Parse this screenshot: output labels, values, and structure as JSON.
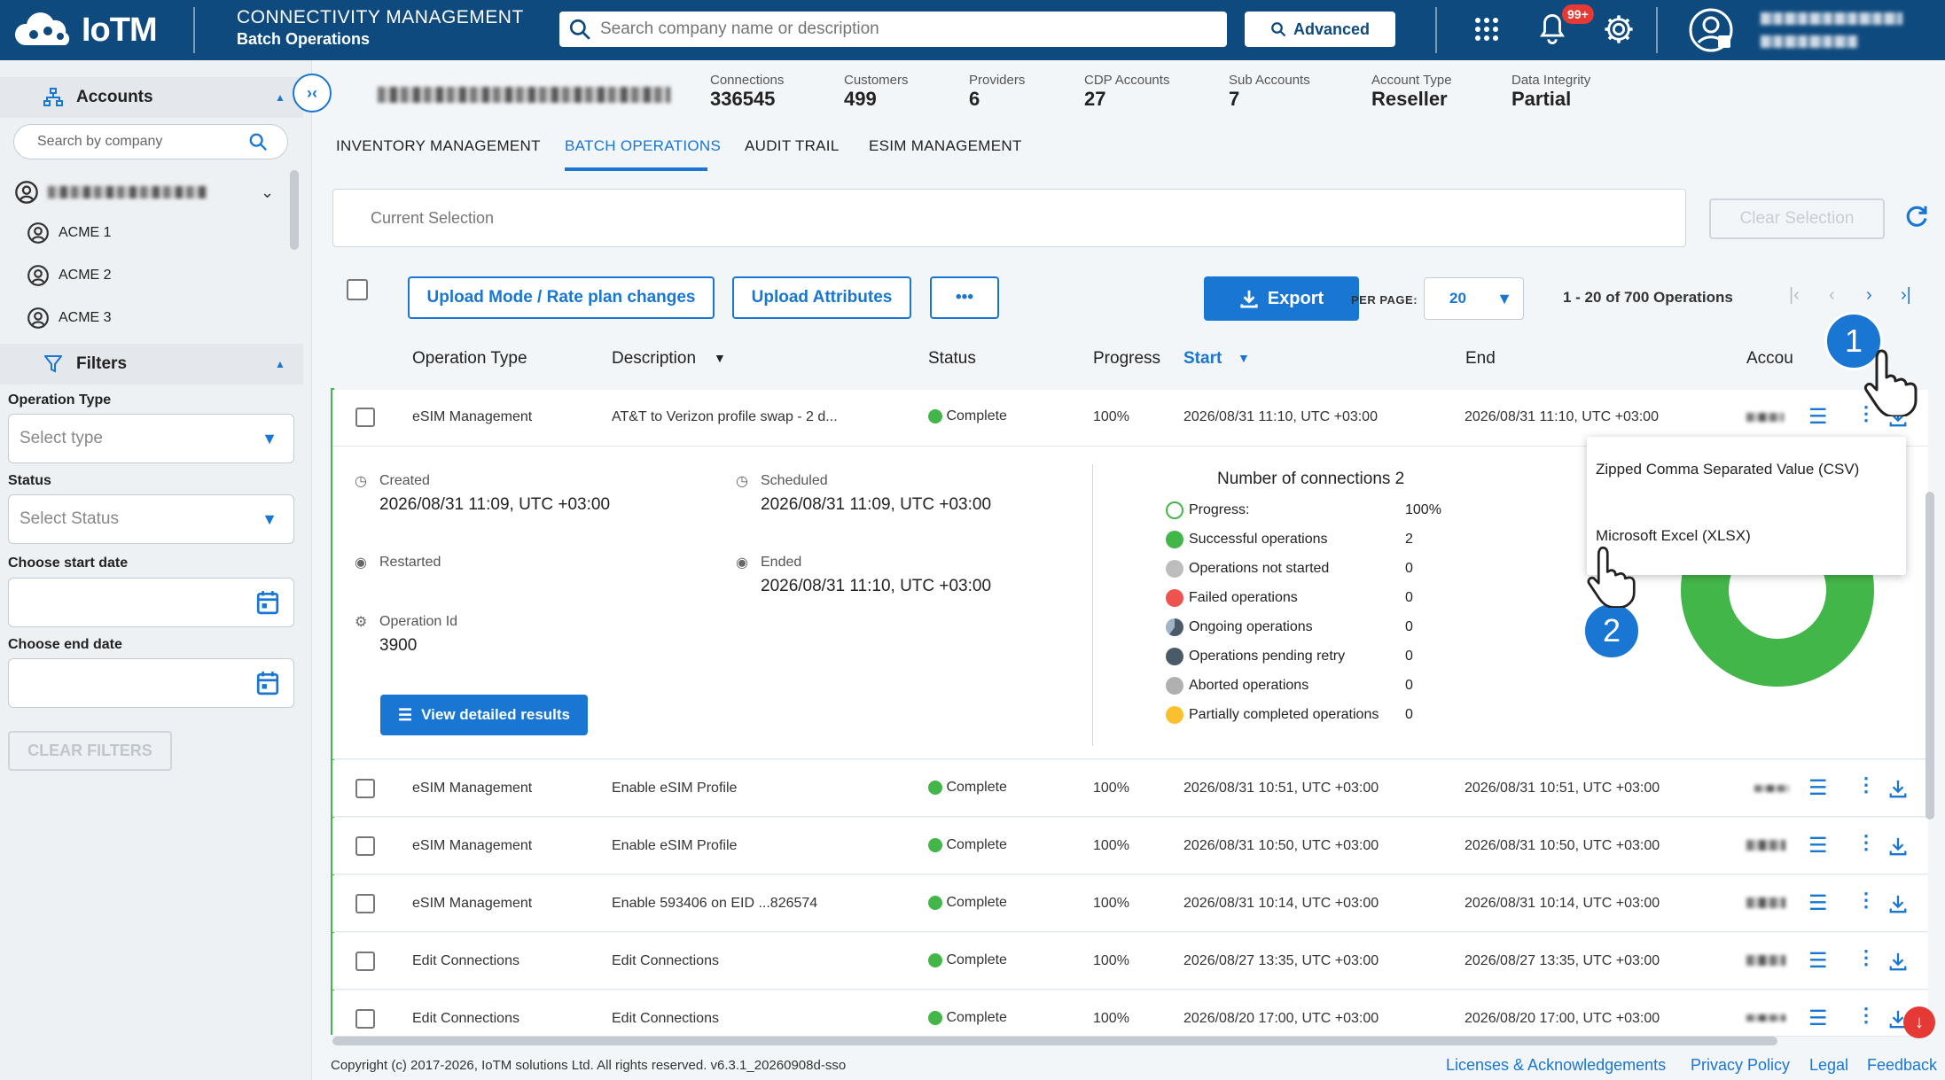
{
  "topbar": {
    "brand": "IoTM",
    "title": "CONNECTIVITY MANAGEMENT",
    "subtitle": "Batch Operations",
    "search_placeholder": "Search company name or description",
    "advanced_label": "Advanced",
    "notification_count": "99+",
    "icons": [
      "apps-grid-icon",
      "bell-icon",
      "gear-icon",
      "user-avatar-icon"
    ]
  },
  "sidebar": {
    "accounts_label": "Accounts",
    "company_search_placeholder": "Search by company",
    "accounts": [
      "ACME 1",
      "ACME 2",
      "ACME 3"
    ],
    "filters_label": "Filters",
    "operation_type_label": "Operation Type",
    "operation_type_placeholder": "Select type",
    "status_label": "Status",
    "status_placeholder": "Select Status",
    "start_date_label": "Choose start date",
    "end_date_label": "Choose end date",
    "clear_filters": "CLEAR FILTERS"
  },
  "stats": [
    {
      "label": "Connections",
      "value": "336545"
    },
    {
      "label": "Customers",
      "value": "499"
    },
    {
      "label": "Providers",
      "value": "6"
    },
    {
      "label": "CDP Accounts",
      "value": "27"
    },
    {
      "label": "Sub Accounts",
      "value": "7"
    },
    {
      "label": "Account Type",
      "value": "Reseller"
    },
    {
      "label": "Data Integrity",
      "value": "Partial"
    }
  ],
  "tabs": [
    "INVENTORY MANAGEMENT",
    "BATCH OPERATIONS",
    "AUDIT TRAIL",
    "ESIM MANAGEMENT"
  ],
  "active_tab": "BATCH OPERATIONS",
  "current_selection_placeholder": "Current Selection",
  "clear_selection": "Clear Selection",
  "toolbar": {
    "upload_mode": "Upload Mode / Rate plan changes",
    "upload_attributes": "Upload Attributes",
    "more": "•••",
    "export": "Export",
    "per_page_label": "PER PAGE:",
    "per_page_value": "20",
    "pagination": "1 - 20 of 700 Operations"
  },
  "columns": [
    "Operation Type",
    "Description",
    "Status",
    "Progress",
    "Start",
    "End",
    "Accou"
  ],
  "rows": [
    {
      "type": "eSIM Management",
      "description": "AT&T to Verizon profile swap - 2 d...",
      "status": "Complete",
      "progress": "100%",
      "start": "2026/08/31 11:10, UTC +03:00",
      "end": "2026/08/31 11:10, UTC +03:00"
    },
    {
      "type": "eSIM Management",
      "description": "Enable eSIM Profile",
      "status": "Complete",
      "progress": "100%",
      "start": "2026/08/31 10:51, UTC +03:00",
      "end": "2026/08/31 10:51, UTC +03:00"
    },
    {
      "type": "eSIM Management",
      "description": "Enable eSIM Profile",
      "status": "Complete",
      "progress": "100%",
      "start": "2026/08/31 10:50, UTC +03:00",
      "end": "2026/08/31 10:50, UTC +03:00"
    },
    {
      "type": "eSIM Management",
      "description": "Enable 593406 on EID ...826574",
      "status": "Complete",
      "progress": "100%",
      "start": "2026/08/31 10:14, UTC +03:00",
      "end": "2026/08/31 10:14, UTC +03:00"
    },
    {
      "type": "Edit Connections",
      "description": "Edit Connections",
      "status": "Complete",
      "progress": "100%",
      "start": "2026/08/27 13:35, UTC +03:00",
      "end": "2026/08/27 13:35, UTC +03:00"
    },
    {
      "type": "Edit Connections",
      "description": "Edit Connections",
      "status": "Complete",
      "progress": "100%",
      "start": "2026/08/20 17:00, UTC +03:00",
      "end": "2026/08/20 17:00, UTC +03:00"
    }
  ],
  "details": {
    "created_label": "Created",
    "created_value": "2026/08/31 11:09, UTC +03:00",
    "scheduled_label": "Scheduled",
    "scheduled_value": "2026/08/31 11:09, UTC +03:00",
    "restarted_label": "Restarted",
    "ended_label": "Ended",
    "ended_value": "2026/08/31 11:10, UTC +03:00",
    "operation_id_label": "Operation Id",
    "operation_id_value": "3900",
    "view_results": "View detailed results",
    "connections_title": "Number of connections 2",
    "legend": [
      {
        "label": "Progress:",
        "value": "100%",
        "color": "#ffffff"
      },
      {
        "label": "Successful operations",
        "value": "2",
        "color": "#43b649"
      },
      {
        "label": "Operations not started",
        "value": "0",
        "color": "#bdbdbd"
      },
      {
        "label": "Failed operations",
        "value": "0",
        "color": "#ef5350"
      },
      {
        "label": "Ongoing operations",
        "value": "0",
        "color": "#5c6b7a"
      },
      {
        "label": "Operations pending retry",
        "value": "0",
        "color": "#4a5a68"
      },
      {
        "label": "Aborted operations",
        "value": "0",
        "color": "#b0b0b0"
      },
      {
        "label": "Partially completed operations",
        "value": "0",
        "color": "#fbc02d"
      }
    ],
    "donut_success_fraction": 1.0
  },
  "export_menu": {
    "csv": "Zipped Comma Separated Value (CSV)",
    "xlsx": "Microsoft Excel (XLSX)"
  },
  "callouts": [
    "1",
    "2"
  ],
  "footer": {
    "copyright": "Copyright (c) 2017-2026, IoTM solutions Ltd. All rights reserved. v6.3.1_20260908d-sso",
    "links": [
      "Licenses & Acknowledgements",
      "Privacy Policy",
      "Legal",
      "Feedback"
    ]
  },
  "colors": {
    "header": "#0f4a7e",
    "accent": "#1976d2",
    "success": "#43b649"
  }
}
